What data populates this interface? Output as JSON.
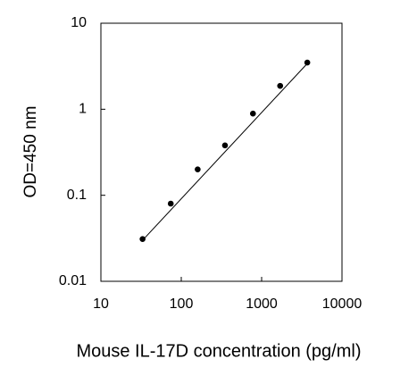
{
  "chart_data": {
    "type": "scatter",
    "x_label": "Mouse IL-17D concentration (pg/ml)",
    "y_label": "OD=450 nm",
    "xlog": true,
    "ylog": true,
    "xlim": [
      10,
      10000
    ],
    "ylim": [
      0.01,
      10
    ],
    "xticks": [
      10,
      100,
      1000,
      10000
    ],
    "yticks": [
      0.01,
      0.1,
      1,
      10
    ],
    "series": [
      {
        "mode": "markers",
        "color": "#000000",
        "x": [
          33,
          74,
          160,
          350,
          780,
          1700,
          3700
        ],
        "values": [
          0.031,
          0.08,
          0.2,
          0.38,
          0.89,
          1.87,
          3.49
        ]
      },
      {
        "mode": "line",
        "color": "#000000",
        "x": [
          33,
          3700
        ],
        "values": [
          0.03,
          3.4
        ]
      }
    ]
  }
}
